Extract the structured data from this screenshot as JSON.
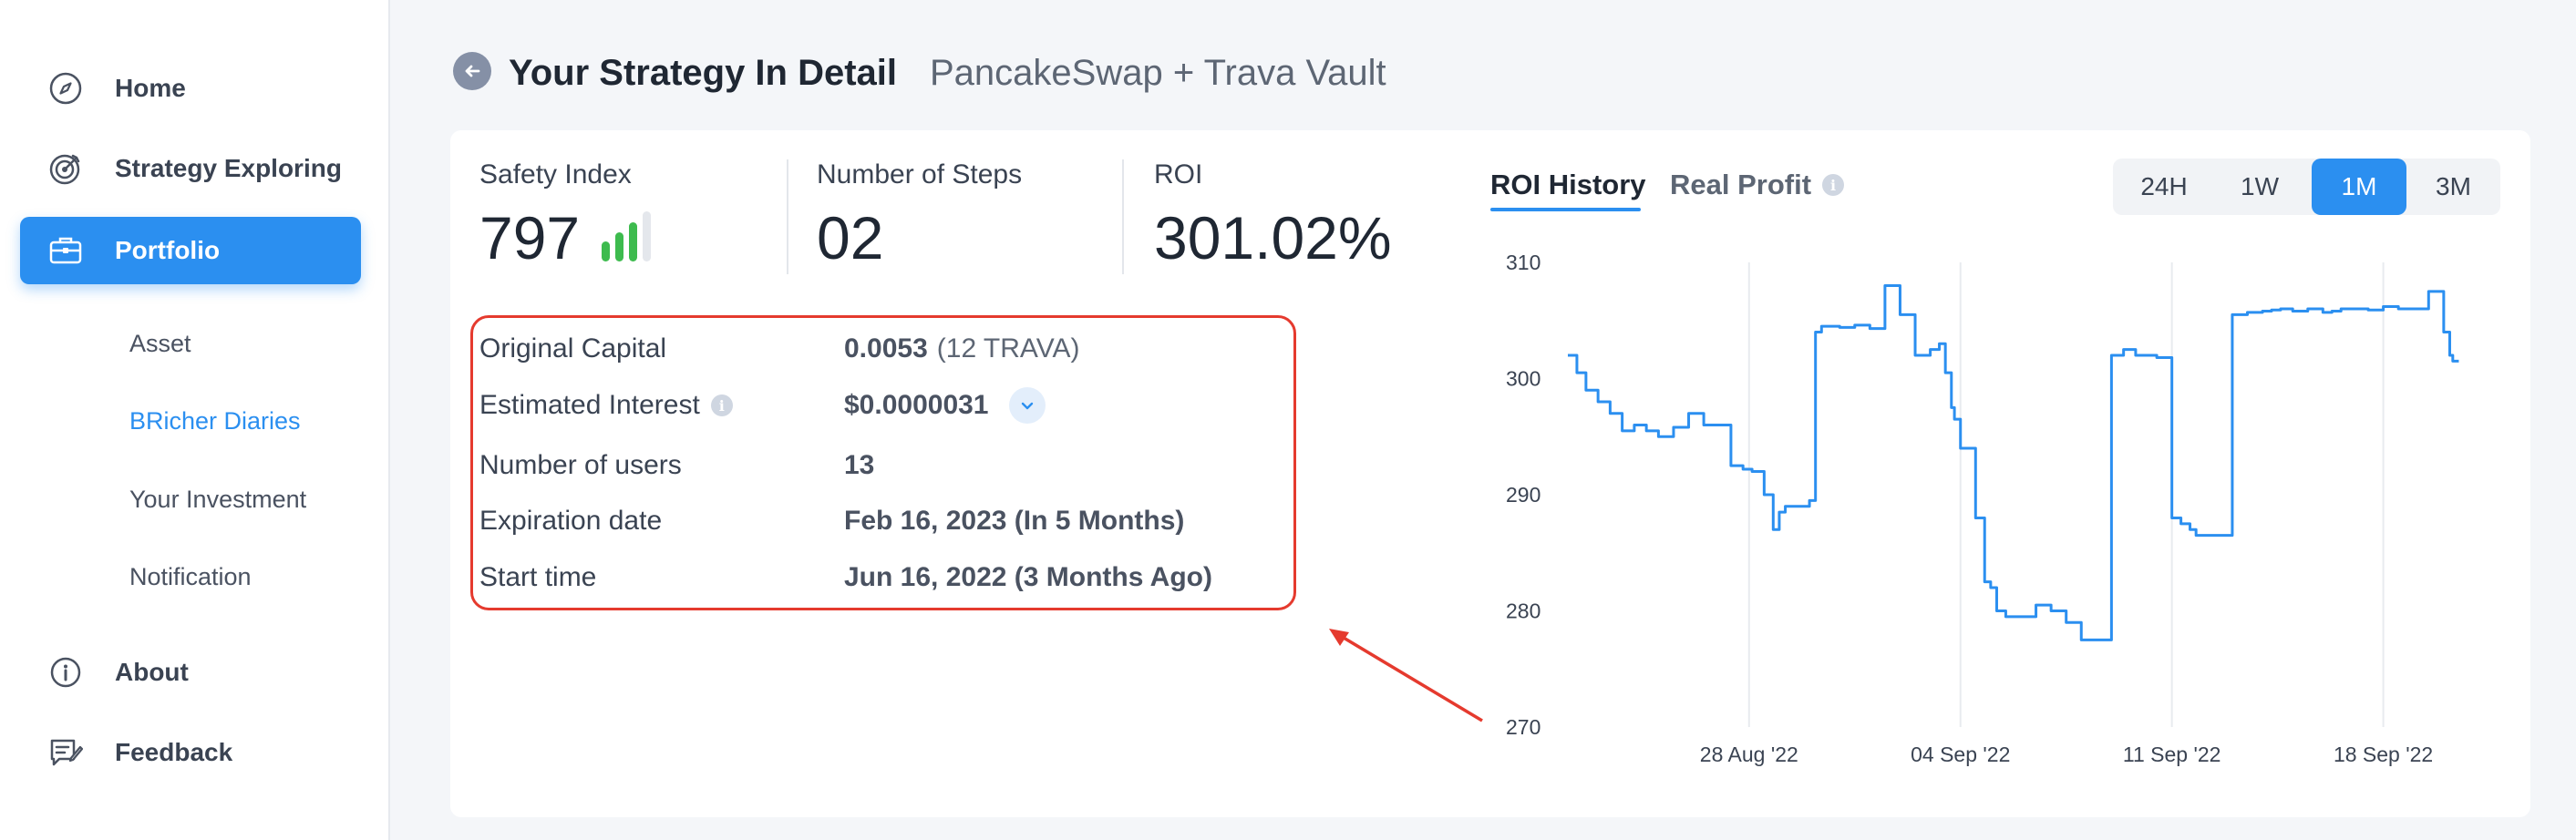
{
  "sidebar": {
    "items": [
      {
        "label": "Home",
        "icon": "compass-icon"
      },
      {
        "label": "Strategy Exploring",
        "icon": "target-icon"
      },
      {
        "label": "Portfolio",
        "icon": "briefcase-icon"
      }
    ],
    "sub_items": [
      "Asset",
      "BRicher Diaries",
      "Your Investment",
      "Notification"
    ],
    "bottom_items": [
      {
        "label": "About",
        "icon": "info-icon"
      },
      {
        "label": "Feedback",
        "icon": "feedback-icon"
      }
    ]
  },
  "header": {
    "title": "Your Strategy In Detail",
    "subtitle": "PancakeSwap + Trava Vault"
  },
  "stats": {
    "safety_index": {
      "label": "Safety Index",
      "value": "797",
      "signal_level": 3,
      "signal_total": 4
    },
    "steps": {
      "label": "Number of Steps",
      "value": "02"
    },
    "roi": {
      "label": "ROI",
      "value": "301.02%"
    }
  },
  "details": {
    "original_capital": {
      "label": "Original Capital",
      "value": "0.0053",
      "extra": "(12 TRAVA)"
    },
    "estimated_interest": {
      "label": "Estimated Interest",
      "value": "$0.0000031"
    },
    "users": {
      "label": "Number of users",
      "value": "13"
    },
    "expiration": {
      "label": "Expiration date",
      "value": "Feb 16, 2023 (In 5 Months)"
    },
    "start": {
      "label": "Start time",
      "value": "Jun 16, 2022 (3 Months Ago)"
    }
  },
  "tabs": {
    "roi_history": "ROI History",
    "real_profit": "Real Profit"
  },
  "ranges": [
    "24H",
    "1W",
    "1M",
    "3M"
  ],
  "active_range": "1M",
  "colors": {
    "accent": "#2b8ff0",
    "signal_on": "#3dbb4e",
    "signal_off": "#e4e7ec",
    "highlight": "#e53a2e",
    "line": "#2b8ff0"
  },
  "chart_data": {
    "type": "line",
    "y_ticks": [
      "310",
      "300",
      "290",
      "280",
      "270"
    ],
    "ylim": [
      270,
      310
    ],
    "x_ticks": [
      {
        "label": "28 Aug '22",
        "x": 6
      },
      {
        "label": "04 Sep '22",
        "x": 13
      },
      {
        "label": "11 Sep '22",
        "x": 20
      },
      {
        "label": "18 Sep '22",
        "x": 27
      }
    ],
    "xlim": [
      0,
      30
    ],
    "grid": "vertical",
    "series": [
      {
        "x": [
          0.0,
          0.3,
          0.6,
          1.0,
          1.4,
          1.8,
          2.2,
          2.6,
          3.0,
          3.5,
          4.0,
          4.5,
          5.0,
          5.4,
          5.8,
          6.1,
          6.5,
          6.8,
          7.0,
          7.2,
          7.5,
          8.0,
          8.2,
          8.4,
          9.0,
          9.5,
          10.0,
          10.5,
          11.0,
          11.5,
          12.0,
          12.3,
          12.5,
          12.7,
          12.8,
          13.0,
          13.5,
          13.8,
          14.0,
          14.2,
          14.5,
          15.0,
          15.5,
          16.0,
          16.5,
          17.0,
          17.5,
          18.0,
          18.4,
          18.8,
          19.0,
          19.5,
          20.0,
          20.3,
          20.6,
          20.8,
          21.0,
          21.5,
          22.0,
          22.5,
          23.0,
          23.3,
          23.6,
          24.0,
          24.5,
          25.0,
          25.3,
          25.6,
          26.0,
          26.5,
          27.0,
          27.5,
          28.0,
          28.5,
          29.0,
          29.2,
          29.3,
          29.5
        ],
        "y": [
          302,
          300.5,
          299,
          298,
          297,
          295.5,
          296,
          295.5,
          295,
          295.8,
          297,
          296,
          296,
          292.5,
          292.2,
          292,
          290,
          287,
          288.5,
          289,
          289,
          289.5,
          304,
          304.5,
          304.4,
          304.6,
          304.3,
          308,
          305.5,
          302,
          302.5,
          303,
          300.5,
          297.5,
          296.5,
          294,
          288,
          282.5,
          282,
          280,
          279.5,
          279.5,
          280.5,
          280,
          279,
          277.5,
          277.5,
          302,
          302.5,
          302,
          302,
          301.8,
          288,
          287.5,
          287,
          286.5,
          286.5,
          286.5,
          305.5,
          305.7,
          305.8,
          305.9,
          306,
          305.8,
          306,
          305.7,
          305.8,
          306,
          306,
          305.9,
          306.2,
          306,
          306,
          307.5,
          304,
          302,
          301.5,
          301.5
        ],
        "color": "#2b8ff0"
      }
    ]
  }
}
